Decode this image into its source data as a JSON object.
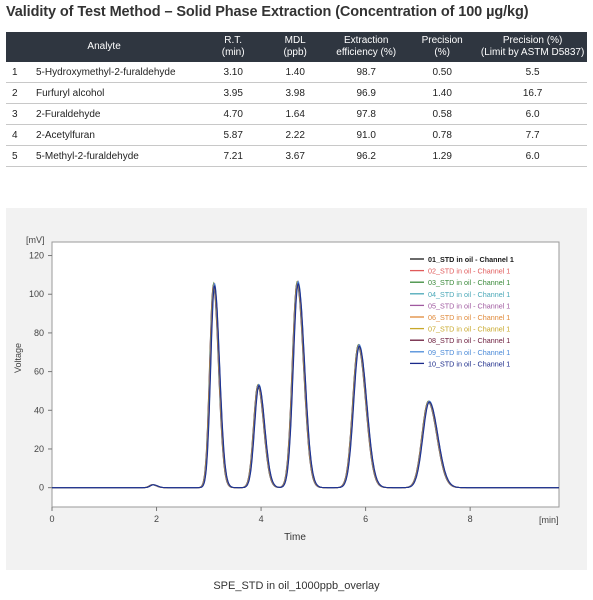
{
  "title": "Validity of Test Method – Solid Phase Extraction (Concentration of 100 µg/kg)",
  "table": {
    "headers": [
      {
        "l1": "Analyte",
        "l2": ""
      },
      {
        "l1": "R.T.",
        "l2": "(min)"
      },
      {
        "l1": "MDL",
        "l2": "(ppb)"
      },
      {
        "l1": "Extraction",
        "l2": "efficiency (%)"
      },
      {
        "l1": "Precision",
        "l2": "(%)"
      },
      {
        "l1": "Precision (%)",
        "l2": "(Limit by ASTM D5837)"
      }
    ],
    "rows": [
      {
        "no": "1",
        "analyte": "5-Hydroxymethyl-2-furaldehyde",
        "rt": "3.10",
        "mdl": "1.40",
        "eff": "98.7",
        "prec": "0.50",
        "limit": "5.5"
      },
      {
        "no": "2",
        "analyte": "Furfuryl alcohol",
        "rt": "3.95",
        "mdl": "3.98",
        "eff": "96.9",
        "prec": "1.40",
        "limit": "16.7"
      },
      {
        "no": "3",
        "analyte": "2-Furaldehyde",
        "rt": "4.70",
        "mdl": "1.64",
        "eff": "97.8",
        "prec": "0.58",
        "limit": "6.0"
      },
      {
        "no": "4",
        "analyte": "2-Acetylfuran",
        "rt": "5.87",
        "mdl": "2.22",
        "eff": "91.0",
        "prec": "0.78",
        "limit": "7.7"
      },
      {
        "no": "5",
        "analyte": "5-Methyl-2-furaldehyde",
        "rt": "7.21",
        "mdl": "3.67",
        "eff": "96.2",
        "prec": "1.29",
        "limit": "6.0"
      }
    ]
  },
  "chart_data": {
    "type": "line",
    "xlabel": "Time",
    "ylabel": "Voltage",
    "x_unit": "[min]",
    "y_unit": "[mV]",
    "xlim": [
      0,
      9.7
    ],
    "ylim": [
      -10,
      127
    ],
    "x_ticks": [
      0,
      2,
      4,
      6,
      8
    ],
    "y_ticks": [
      0,
      20,
      40,
      60,
      80,
      100,
      120
    ],
    "grid": false,
    "legend_position": "top-right",
    "peaks": [
      {
        "rt": 1.93,
        "height": 1.5
      },
      {
        "rt": 3.1,
        "height": 105
      },
      {
        "rt": 3.95,
        "height": 53
      },
      {
        "rt": 4.7,
        "height": 106
      },
      {
        "rt": 5.87,
        "height": 73.5
      },
      {
        "rt": 7.21,
        "height": 44.5
      }
    ],
    "series": [
      {
        "name": "01_STD in oil -  Channel 1",
        "color": "#1a1a1a"
      },
      {
        "name": "02_STD in oil -  Channel 1",
        "color": "#e05a5a"
      },
      {
        "name": "03_STD in oil -  Channel 1",
        "color": "#3a8a3a"
      },
      {
        "name": "04_STD in oil -  Channel 1",
        "color": "#4aa8b8"
      },
      {
        "name": "05_STD in oil -  Channel 1",
        "color": "#a05aa0"
      },
      {
        "name": "06_STD in oil -  Channel 1",
        "color": "#e08a3a"
      },
      {
        "name": "07_STD in oil -  Channel 1",
        "color": "#c8a82a"
      },
      {
        "name": "08_STD in oil -  Channel 1",
        "color": "#6a1a3a"
      },
      {
        "name": "09_STD in oil -  Channel 1",
        "color": "#4a8ad8"
      },
      {
        "name": "10_STD in oil -  Channel 1",
        "color": "#1a2a8a"
      }
    ]
  },
  "caption": "SPE_STD in oil_1000ppb_overlay"
}
